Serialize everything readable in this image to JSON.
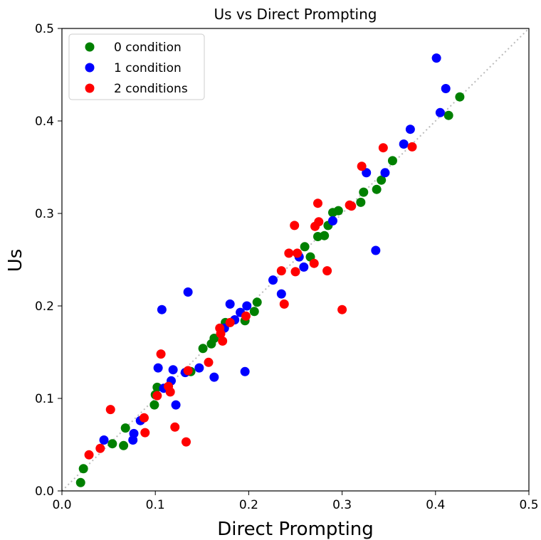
{
  "chart_data": {
    "type": "scatter",
    "title": "Us vs Direct Prompting",
    "xlabel": "Direct Prompting",
    "ylabel": "Us",
    "xlim": [
      0,
      0.5
    ],
    "ylim": [
      0,
      0.5
    ],
    "xticks": [
      "0.0",
      "0.1",
      "0.2",
      "0.3",
      "0.4",
      "0.5"
    ],
    "yticks": [
      "0.0",
      "0.1",
      "0.2",
      "0.3",
      "0.4",
      "0.5"
    ],
    "grid": false,
    "legend_position": "top-left",
    "reference_line": "y = x (dotted gray)",
    "series": [
      {
        "name": "0 condition",
        "color": "#008000",
        "points": [
          [
            0.02,
            0.009
          ],
          [
            0.023,
            0.024
          ],
          [
            0.054,
            0.051
          ],
          [
            0.066,
            0.049
          ],
          [
            0.068,
            0.068
          ],
          [
            0.099,
            0.093
          ],
          [
            0.1,
            0.104
          ],
          [
            0.102,
            0.112
          ],
          [
            0.138,
            0.129
          ],
          [
            0.151,
            0.154
          ],
          [
            0.16,
            0.159
          ],
          [
            0.163,
            0.165
          ],
          [
            0.171,
            0.175
          ],
          [
            0.175,
            0.182
          ],
          [
            0.196,
            0.184
          ],
          [
            0.206,
            0.194
          ],
          [
            0.209,
            0.204
          ],
          [
            0.26,
            0.264
          ],
          [
            0.266,
            0.253
          ],
          [
            0.274,
            0.275
          ],
          [
            0.281,
            0.276
          ],
          [
            0.285,
            0.287
          ],
          [
            0.29,
            0.301
          ],
          [
            0.296,
            0.303
          ],
          [
            0.32,
            0.312
          ],
          [
            0.323,
            0.323
          ],
          [
            0.337,
            0.326
          ],
          [
            0.342,
            0.336
          ],
          [
            0.354,
            0.357
          ],
          [
            0.414,
            0.406
          ],
          [
            0.426,
            0.426
          ]
        ]
      },
      {
        "name": "1 condition",
        "color": "#0000ff",
        "points": [
          [
            0.045,
            0.055
          ],
          [
            0.076,
            0.055
          ],
          [
            0.077,
            0.062
          ],
          [
            0.084,
            0.076
          ],
          [
            0.103,
            0.133
          ],
          [
            0.107,
            0.196
          ],
          [
            0.109,
            0.111
          ],
          [
            0.117,
            0.119
          ],
          [
            0.119,
            0.131
          ],
          [
            0.122,
            0.093
          ],
          [
            0.132,
            0.128
          ],
          [
            0.135,
            0.215
          ],
          [
            0.147,
            0.133
          ],
          [
            0.163,
            0.123
          ],
          [
            0.174,
            0.176
          ],
          [
            0.18,
            0.202
          ],
          [
            0.185,
            0.185
          ],
          [
            0.191,
            0.193
          ],
          [
            0.196,
            0.129
          ],
          [
            0.198,
            0.2
          ],
          [
            0.226,
            0.228
          ],
          [
            0.235,
            0.213
          ],
          [
            0.254,
            0.253
          ],
          [
            0.259,
            0.242
          ],
          [
            0.29,
            0.292
          ],
          [
            0.326,
            0.344
          ],
          [
            0.336,
            0.26
          ],
          [
            0.346,
            0.344
          ],
          [
            0.366,
            0.375
          ],
          [
            0.373,
            0.391
          ],
          [
            0.401,
            0.468
          ],
          [
            0.405,
            0.409
          ],
          [
            0.411,
            0.435
          ]
        ]
      },
      {
        "name": "2 conditions",
        "color": "#ff0000",
        "points": [
          [
            0.029,
            0.039
          ],
          [
            0.041,
            0.046
          ],
          [
            0.052,
            0.088
          ],
          [
            0.088,
            0.079
          ],
          [
            0.089,
            0.063
          ],
          [
            0.102,
            0.103
          ],
          [
            0.106,
            0.148
          ],
          [
            0.114,
            0.113
          ],
          [
            0.116,
            0.107
          ],
          [
            0.121,
            0.069
          ],
          [
            0.133,
            0.053
          ],
          [
            0.135,
            0.13
          ],
          [
            0.157,
            0.139
          ],
          [
            0.169,
            0.176
          ],
          [
            0.17,
            0.17
          ],
          [
            0.172,
            0.162
          ],
          [
            0.18,
            0.182
          ],
          [
            0.197,
            0.189
          ],
          [
            0.235,
            0.238
          ],
          [
            0.238,
            0.202
          ],
          [
            0.243,
            0.257
          ],
          [
            0.249,
            0.287
          ],
          [
            0.25,
            0.237
          ],
          [
            0.252,
            0.257
          ],
          [
            0.27,
            0.246
          ],
          [
            0.271,
            0.286
          ],
          [
            0.274,
            0.311
          ],
          [
            0.275,
            0.291
          ],
          [
            0.284,
            0.238
          ],
          [
            0.3,
            0.196
          ],
          [
            0.308,
            0.309
          ],
          [
            0.31,
            0.308
          ],
          [
            0.321,
            0.351
          ],
          [
            0.344,
            0.371
          ],
          [
            0.375,
            0.372
          ]
        ]
      }
    ]
  }
}
